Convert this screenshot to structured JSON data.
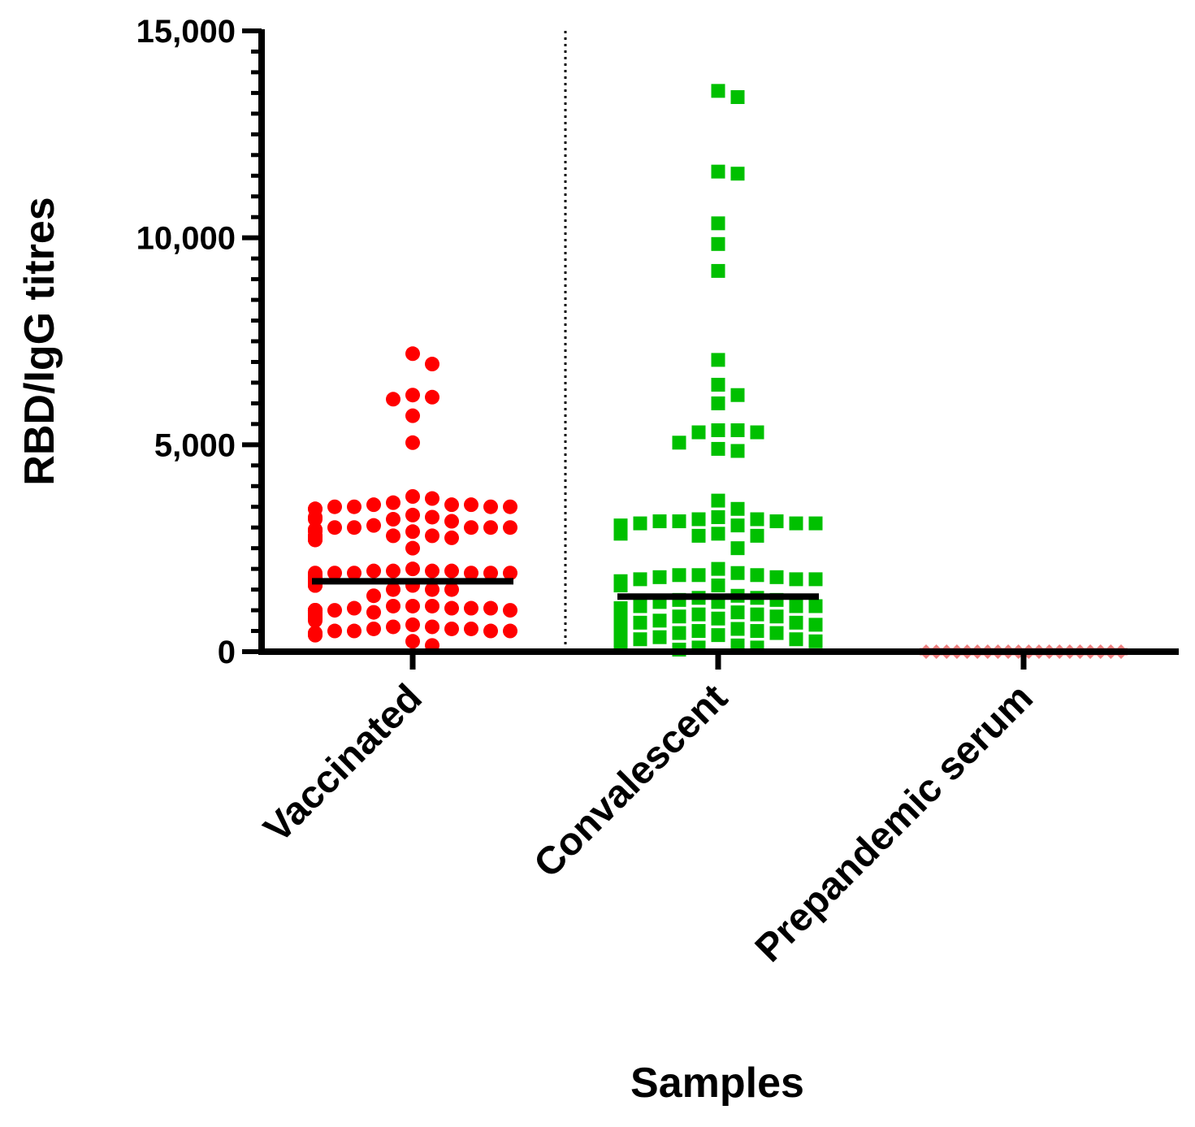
{
  "chart_data": {
    "type": "scatter",
    "subtype": "column scatter (dot plot) with median lines",
    "title": "",
    "xlabel": "Samples",
    "ylabel": "RBD/IgG titres",
    "ylim": [
      0,
      15000
    ],
    "yticks": [
      0,
      5000,
      10000,
      15000
    ],
    "ytick_labels": [
      "0",
      "5,000",
      "10,000",
      "15,000"
    ],
    "minor_tick_step": 500,
    "categories": [
      "Vaccinated",
      "Convalescent",
      "Prepandemic serum"
    ],
    "divider_after_category": "Vaccinated",
    "series": [
      {
        "name": "Vaccinated",
        "marker": "circle",
        "color": "#ff0000",
        "median": 1700,
        "values": [
          7200,
          6950,
          6200,
          6100,
          6150,
          5700,
          5050,
          3700,
          3750,
          3600,
          3550,
          3550,
          3550,
          3500,
          3500,
          3500,
          3500,
          3450,
          3450,
          3300,
          3250,
          3250,
          3200,
          3200,
          3150,
          3050,
          3000,
          3000,
          3000,
          3000,
          3000,
          2950,
          2950,
          2900,
          2900,
          2800,
          2800,
          2800,
          2800,
          2800,
          2750,
          2750,
          2700,
          2700,
          2500,
          2000,
          1950,
          1950,
          1950,
          1950,
          1900,
          1900,
          1900,
          1900,
          1900,
          1900,
          1850,
          1850,
          1850,
          1800,
          1800,
          1800,
          1800,
          1800,
          1800,
          1750,
          1750,
          1750,
          1750,
          1750,
          1700,
          1700,
          1700,
          1650,
          1650,
          1650,
          1650,
          1600,
          1600,
          1600,
          1600,
          1500,
          1500,
          1500,
          1350,
          1100,
          1100,
          1100,
          1050,
          1050,
          1050,
          1050,
          1000,
          1000,
          1000,
          1000,
          1000,
          1000,
          1000,
          1000,
          1000,
          1000,
          1000,
          1000,
          1000,
          1000,
          1000,
          950,
          950,
          950,
          950,
          950,
          950,
          900,
          900,
          850,
          850,
          800,
          800,
          800,
          750,
          650,
          600,
          600,
          550,
          550,
          550,
          500,
          500,
          500,
          500,
          450,
          450,
          400,
          400,
          250,
          150
        ]
      },
      {
        "name": "Convalescent",
        "marker": "square",
        "color": "#00c000",
        "median": 1330,
        "values": [
          13550,
          13400,
          11600,
          11550,
          10350,
          9850,
          9200,
          7050,
          6450,
          6200,
          6000,
          5350,
          5350,
          5300,
          5300,
          5050,
          4900,
          4850,
          3650,
          3450,
          3250,
          3200,
          3200,
          3150,
          3150,
          3150,
          3100,
          3100,
          3100,
          3050,
          3050,
          3000,
          3000,
          2950,
          2900,
          2850,
          2850,
          2800,
          2800,
          2500,
          2000,
          1900,
          1850,
          1850,
          1850,
          1800,
          1800,
          1750,
          1750,
          1750,
          1700,
          1700,
          1700,
          1700,
          1650,
          1650,
          1650,
          1650,
          1650,
          1600,
          1600,
          1600,
          1350,
          1300,
          1300,
          1250,
          1250,
          1200,
          1200,
          1100,
          1100,
          1100,
          1050,
          1050,
          1050,
          1050,
          1050,
          1000,
          1000,
          1000,
          1000,
          1000,
          1000,
          1000,
          1000,
          950,
          950,
          950,
          900,
          900,
          900,
          850,
          850,
          850,
          800,
          750,
          700,
          700,
          650,
          650,
          650,
          600,
          600,
          600,
          600,
          550,
          550,
          550,
          550,
          500,
          500,
          500,
          500,
          500,
          500,
          450,
          450,
          450,
          450,
          400,
          400,
          400,
          400,
          350,
          350,
          300,
          300,
          300,
          300,
          250,
          250,
          250,
          250,
          200,
          200,
          150,
          150,
          100,
          100,
          50
        ]
      },
      {
        "name": "Prepandemic serum",
        "marker": "diamond",
        "color": "#f08080",
        "median": 0,
        "median_color": "#5b8ee6",
        "values": [
          0,
          0,
          0,
          0,
          0,
          0,
          0,
          0,
          0,
          0,
          0,
          0,
          0,
          0,
          0,
          0,
          0,
          0,
          0,
          0
        ]
      }
    ]
  }
}
